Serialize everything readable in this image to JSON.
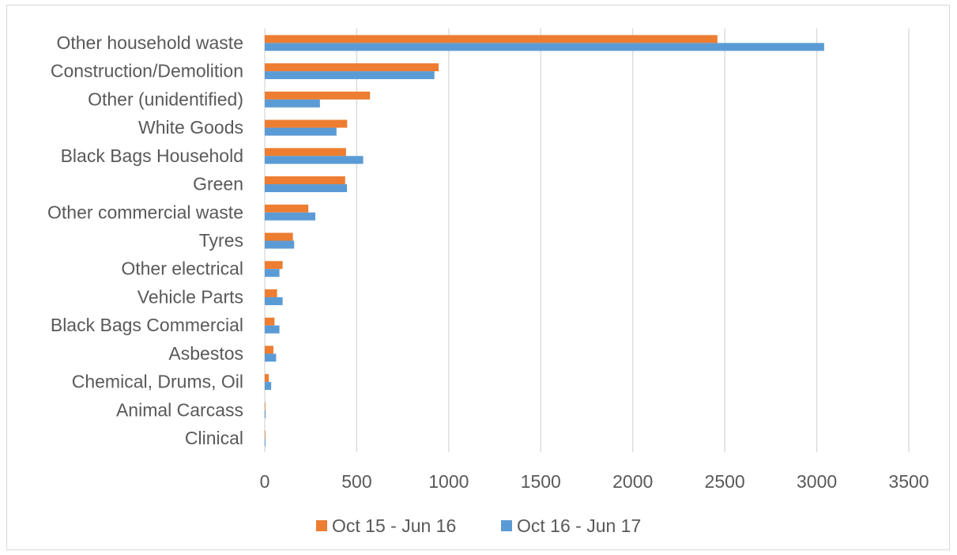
{
  "chart_data": {
    "type": "bar",
    "orientation": "horizontal",
    "categories": [
      "Other household waste",
      "Construction/Demolition",
      "Other (unidentified)",
      "White Goods",
      "Black Bags Household",
      "Green",
      "Other commercial waste",
      "Tyres",
      "Other electrical",
      "Vehicle Parts",
      "Black Bags Commercial",
      "Asbestos",
      "Chemical, Drums, Oil",
      "Animal Carcass",
      "Clinical"
    ],
    "series": [
      {
        "name": "Oct 15 - Jun 16",
        "color": "#ED7D31",
        "values": [
          2460,
          945,
          572,
          448,
          442,
          437,
          237,
          153,
          97,
          67,
          53,
          47,
          22,
          3,
          2
        ]
      },
      {
        "name": "Oct 16 - Jun 17",
        "color": "#5B9BD5",
        "values": [
          3040,
          922,
          300,
          390,
          535,
          447,
          275,
          160,
          80,
          97,
          80,
          62,
          35,
          5,
          4
        ]
      }
    ],
    "xlim": [
      0,
      3500
    ],
    "xticks": [
      0,
      500,
      1000,
      1500,
      2000,
      2500,
      3000,
      3500
    ],
    "xtick_labels": [
      "0",
      "500",
      "1000",
      "1500",
      "2000",
      "2500",
      "3000",
      "3500"
    ],
    "grid": "vertical",
    "legend_position": "bottom"
  }
}
